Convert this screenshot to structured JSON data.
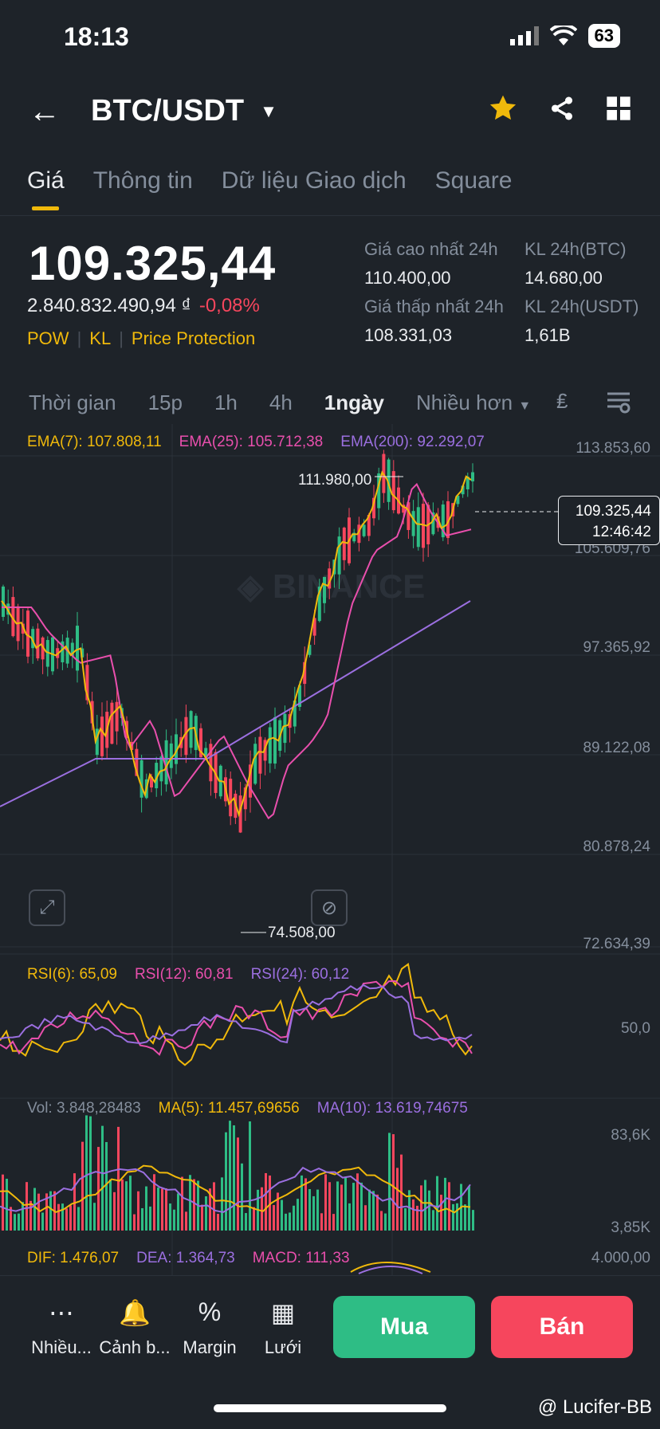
{
  "status": {
    "time": "18:13",
    "battery": "63"
  },
  "header": {
    "pair": "BTC/USDT"
  },
  "tabs": [
    "Giá",
    "Thông tin",
    "Dữ liệu Giao dịch",
    "Square"
  ],
  "price": {
    "last": "109.325,44",
    "fiat": "2.840.832.490,94 ₫",
    "change": "-0,08%",
    "tags": [
      "POW",
      "KL",
      "Price Protection"
    ],
    "high_label": "Giá cao nhất 24h",
    "high": "110.400,00",
    "low_label": "Giá thấp nhất 24h",
    "low": "108.331,03",
    "vol_btc_label": "KL 24h(BTC)",
    "vol_btc": "14.680,00",
    "vol_usdt_label": "KL 24h(USDT)",
    "vol_usdt": "1,61B"
  },
  "timeframes": [
    "Thời gian",
    "15p",
    "1h",
    "4h",
    "1ngày",
    "Nhiều hơn"
  ],
  "selected_timeframe": "1ngày",
  "ema_legend": {
    "ema7": "EMA(7): 107.808,11",
    "ema25": "EMA(25): 105.712,38",
    "ema200": "EMA(200): 92.292,07"
  },
  "price_axis": [
    "113.853,60",
    "105.609,76",
    "97.365,92",
    "89.122,08",
    "80.878,24",
    "72.634,39"
  ],
  "chart_annotations": {
    "high": "111.980,00",
    "low": "74.508,00",
    "current_price": "109.325,44",
    "countdown": "12:46:42"
  },
  "rsi_legend": {
    "rsi6": "RSI(6): 65,09",
    "rsi12": "RSI(12): 60,81",
    "rsi24": "RSI(24): 60,12",
    "axis": "50,0"
  },
  "vol_legend": {
    "vol": "Vol: 3.848,28483",
    "ma5": "MA(5): 11.457,69656",
    "ma10": "MA(10): 13.619,74675",
    "axis_top": "83,6K",
    "axis_bottom": "3,85K"
  },
  "macd_legend": {
    "dif": "DIF: 1.476,07",
    "dea": "DEA: 1.364,73",
    "macd": "MACD: 111,33",
    "axis": "4.000,00"
  },
  "bottom_nav": [
    "Nhiều...",
    "Cảnh b...",
    "Margin",
    "Lưới"
  ],
  "actions": {
    "buy": "Mua",
    "sell": "Bán"
  },
  "watermark": "@ Lucifer-BB",
  "colors": {
    "up": "#2ebd85",
    "down": "#f6465d",
    "accent": "#f0b90b",
    "ema25": "#e94fad",
    "ema200": "#9b6fe0"
  }
}
